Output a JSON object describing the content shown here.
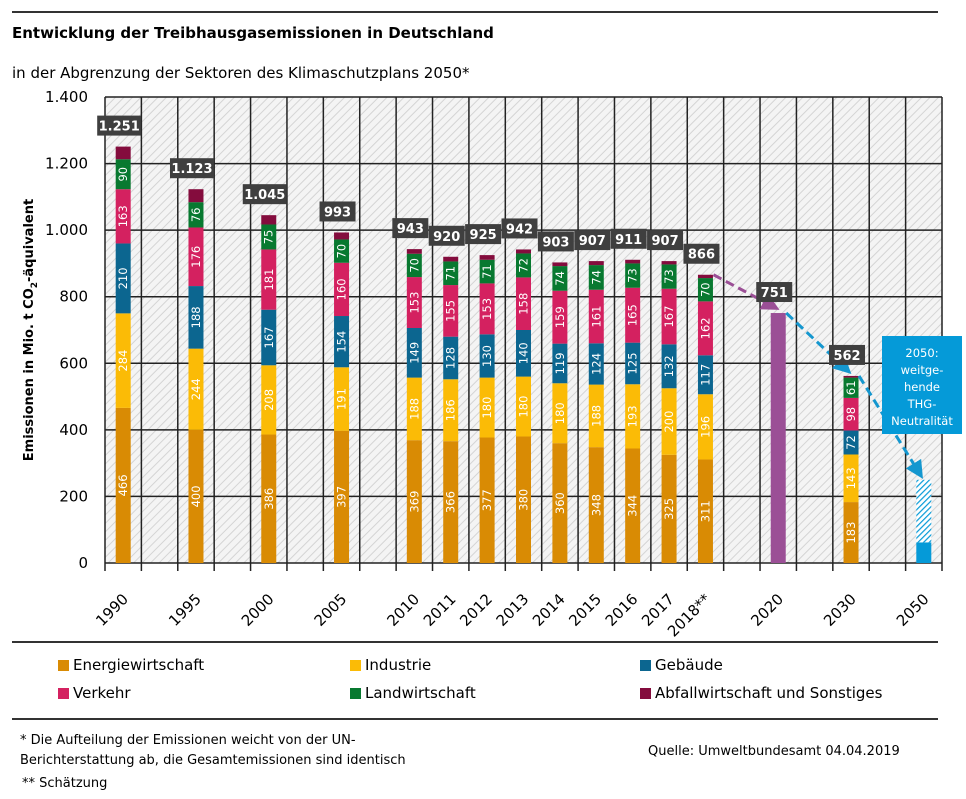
{
  "header": {
    "title": "Entwicklung der Treibhausgasemissionen  in Deutschland",
    "subtitle": "in der Abgrenzung der Sektoren des Klimaschutzplans 2050*"
  },
  "chart_data": {
    "type": "bar",
    "stacked": true,
    "title": "Entwicklung der Treibhausgasemissionen in Deutschland",
    "subtitle": "in der Abgrenzung der Sektoren des Klimaschutzplans 2050*",
    "ylabel": "Emissionen in Mio. t CO2-äquivalent",
    "ylabel_main": "Emissionen in Mio. t CO",
    "ylabel_sub": "2",
    "ylabel_tail": "-äquivalent",
    "ylim": [
      0,
      1400
    ],
    "yticks": [
      0,
      200,
      400,
      600,
      800,
      1000,
      1200,
      1400
    ],
    "ytick_labels": [
      "0",
      "200",
      "400",
      "600",
      "800",
      "1.000",
      "1.200",
      "1.400"
    ],
    "grid": true,
    "slots": 23,
    "series": [
      {
        "name": "Energiewirtschaft",
        "color": "#d98b04"
      },
      {
        "name": "Industrie",
        "color": "#fbbb06"
      },
      {
        "name": "Gebäude",
        "color": "#0c6690"
      },
      {
        "name": "Verkehr",
        "color": "#d42160"
      },
      {
        "name": "Landwirtschaft",
        "color": "#087930"
      },
      {
        "name": "Abfallwirtschaft und Sonstiges",
        "color": "#840c3d"
      }
    ],
    "bars": [
      {
        "label": "1990",
        "slot": 0,
        "total": "1.251",
        "values": [
          466,
          284,
          210,
          163,
          90,
          38
        ]
      },
      {
        "label": "1995",
        "slot": 2,
        "total": "1.123",
        "values": [
          400,
          244,
          188,
          176,
          76,
          39
        ]
      },
      {
        "label": "2000",
        "slot": 4,
        "total": "1.045",
        "values": [
          386,
          208,
          167,
          181,
          75,
          28
        ]
      },
      {
        "label": "2005",
        "slot": 6,
        "total": "993",
        "values": [
          397,
          191,
          154,
          160,
          70,
          21
        ]
      },
      {
        "label": "2010",
        "slot": 8,
        "total": "943",
        "values": [
          369,
          188,
          149,
          153,
          70,
          14
        ]
      },
      {
        "label": "2011",
        "slot": 9,
        "total": "920",
        "values": [
          366,
          186,
          128,
          155,
          71,
          14
        ]
      },
      {
        "label": "2012",
        "slot": 10,
        "total": "925",
        "values": [
          377,
          180,
          130,
          153,
          71,
          14
        ]
      },
      {
        "label": "2013",
        "slot": 11,
        "total": "942",
        "values": [
          380,
          180,
          140,
          158,
          72,
          12
        ]
      },
      {
        "label": "2014",
        "slot": 12,
        "total": "903",
        "values": [
          360,
          180,
          119,
          159,
          74,
          11
        ]
      },
      {
        "label": "2015",
        "slot": 13,
        "total": "907",
        "values": [
          348,
          188,
          124,
          161,
          74,
          12
        ]
      },
      {
        "label": "2016",
        "slot": 14,
        "total": "911",
        "values": [
          344,
          193,
          125,
          165,
          73,
          11
        ]
      },
      {
        "label": "2017",
        "slot": 15,
        "total": "907",
        "values": [
          325,
          200,
          132,
          167,
          73,
          10
        ]
      },
      {
        "label": "2018**",
        "slot": 16,
        "total": "866",
        "values": [
          311,
          196,
          117,
          162,
          70,
          10
        ]
      },
      {
        "label": "2020",
        "slot": 18,
        "total": "751",
        "single": 751,
        "color": "#9b4f96"
      },
      {
        "label": "2030",
        "slot": 20,
        "total": "562",
        "values": [
          183,
          143,
          72,
          98,
          61,
          5
        ]
      },
      {
        "label": "2050",
        "slot": 22,
        "range": [
          62,
          250
        ],
        "color": "#059ad8"
      }
    ],
    "annotation": {
      "lines": [
        "2050:",
        "weitge-",
        "hende",
        "THG-",
        "Neutralität"
      ],
      "color": "#059ad8"
    },
    "trend_arrows": [
      {
        "from": "2018**",
        "to": "2020",
        "color": "#9b4f96"
      },
      {
        "from": "2020",
        "to": "2030",
        "color": "#1597cf"
      },
      {
        "from": "2030",
        "to": "2050",
        "color": "#1597cf"
      }
    ],
    "legend_position": "bottom"
  },
  "legend": [
    {
      "label": "Energiewirtschaft",
      "color": "#d98b04"
    },
    {
      "label": "Industrie",
      "color": "#fbbb06"
    },
    {
      "label": "Gebäude",
      "color": "#0c6690"
    },
    {
      "label": "Verkehr",
      "color": "#d42160"
    },
    {
      "label": "Landwirtschaft",
      "color": "#087930"
    },
    {
      "label": "Abfallwirtschaft und Sonstiges",
      "color": "#840c3d"
    }
  ],
  "footer": {
    "note1_line1": "* Die Aufteilung der Emissionen weicht von der UN-",
    "note1_line2": "Berichterstattung ab, die Gesamtemissionen sind identisch",
    "note2": "** Schätzung",
    "source": "Quelle: Umweltbundesamt  04.04.2019"
  }
}
